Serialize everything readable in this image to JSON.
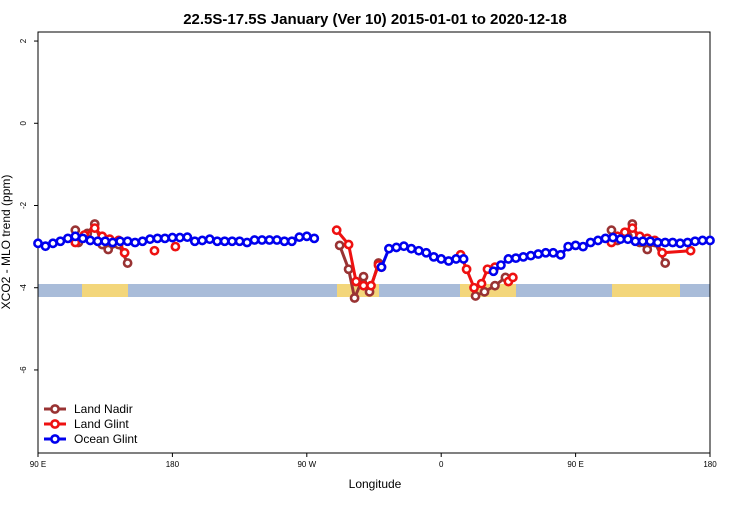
{
  "chart_data": {
    "type": "line",
    "title": "22.5S-17.5S January (Ver 10)   2015-01-01 to 2020-12-18",
    "x_label": "Longitude",
    "y_label": "XCO2 - MLO trend (ppm)",
    "xlim": [
      90,
      540
    ],
    "ylim": [
      -8.02,
      2.22
    ],
    "xticks": [
      {
        "value": 90,
        "label": "90 E"
      },
      {
        "value": 180,
        "label": "180"
      },
      {
        "value": 270,
        "label": "90 W"
      },
      {
        "value": 360,
        "label": "0"
      },
      {
        "value": 450,
        "label": "90 E"
      },
      {
        "value": 540,
        "label": "180"
      }
    ],
    "yticks": [
      2,
      0,
      -2,
      -4,
      -6
    ],
    "legend": "bottomleft",
    "series": [
      {
        "name": "Land Nadir",
        "color": "#993333",
        "x": [
          115,
          117,
          123,
          128,
          133,
          137,
          144,
          150,
          null,
          292,
          298,
          302,
          308,
          312,
          318,
          null,
          383,
          389,
          396,
          403,
          null,
          474,
          478,
          485,
          488,
          493,
          498,
          503,
          510
        ],
        "values": [
          -2.6,
          -2.9,
          -2.68,
          -2.45,
          -2.95,
          -3.07,
          -2.95,
          -3.4,
          null,
          -2.97,
          -3.55,
          -4.25,
          -3.73,
          -4.1,
          -3.4,
          null,
          -4.2,
          -4.1,
          -3.95,
          -3.75,
          null,
          -2.6,
          -2.85,
          -2.75,
          -2.45,
          -2.9,
          -3.07,
          -2.9,
          -3.4
        ]
      },
      {
        "name": "Land Glint",
        "color": "#ee1111",
        "x": [
          115,
          121,
          128,
          133,
          138,
          144,
          148,
          null,
          168,
          null,
          182,
          null,
          290,
          298,
          303,
          308,
          313,
          318,
          320,
          null,
          373,
          377,
          382,
          387,
          391,
          396,
          null,
          405,
          408,
          null,
          474,
          478,
          483,
          488,
          493,
          498,
          503,
          508,
          527
        ],
        "values": [
          -2.9,
          -2.72,
          -2.55,
          -2.75,
          -2.82,
          -2.85,
          -3.15,
          null,
          -3.1,
          null,
          -3.0,
          null,
          -2.6,
          -2.95,
          -3.85,
          -3.95,
          -3.95,
          -3.45,
          -3.5,
          null,
          -3.2,
          -3.55,
          -4.0,
          -3.9,
          -3.55,
          -3.5,
          null,
          -3.85,
          -3.75,
          null,
          -2.9,
          -2.75,
          -2.65,
          -2.55,
          -2.75,
          -2.8,
          -2.85,
          -3.15,
          -3.1
        ]
      },
      {
        "name": "Ocean Glint",
        "color": "#0000ee",
        "x": [
          90,
          95,
          100,
          105,
          110,
          115,
          120,
          125,
          130,
          135,
          140,
          145,
          150,
          155,
          160,
          165,
          170,
          175,
          180,
          185,
          190,
          195,
          200,
          205,
          210,
          215,
          220,
          225,
          230,
          235,
          240,
          245,
          250,
          255,
          260,
          265,
          270,
          275,
          null,
          320,
          325,
          330,
          335,
          340,
          345,
          350,
          355,
          360,
          365,
          370,
          375,
          null,
          395,
          400,
          405,
          410,
          415,
          420,
          425,
          430,
          435,
          440,
          445,
          450,
          455,
          460,
          465,
          470,
          475,
          480,
          485,
          490,
          495,
          500,
          505,
          510,
          515,
          520,
          525,
          530,
          535,
          540
        ],
        "values": [
          -2.92,
          -2.99,
          -2.92,
          -2.87,
          -2.8,
          -2.75,
          -2.8,
          -2.85,
          -2.87,
          -2.87,
          -2.9,
          -2.87,
          -2.87,
          -2.9,
          -2.87,
          -2.82,
          -2.8,
          -2.8,
          -2.78,
          -2.78,
          -2.77,
          -2.87,
          -2.85,
          -2.82,
          -2.87,
          -2.87,
          -2.87,
          -2.87,
          -2.9,
          -2.84,
          -2.84,
          -2.84,
          -2.84,
          -2.87,
          -2.87,
          -2.77,
          -2.75,
          -2.8,
          null,
          -3.5,
          -3.05,
          -3.02,
          -2.99,
          -3.05,
          -3.1,
          -3.15,
          -3.25,
          -3.3,
          -3.35,
          -3.3,
          -3.3,
          null,
          -3.6,
          -3.45,
          -3.3,
          -3.28,
          -3.25,
          -3.22,
          -3.18,
          -3.15,
          -3.15,
          -3.2,
          -3.0,
          -2.97,
          -3.0,
          -2.9,
          -2.85,
          -2.8,
          -2.78,
          -2.82,
          -2.82,
          -2.87,
          -2.87,
          -2.87,
          -2.9,
          -2.9,
          -2.9,
          -2.92,
          -2.9,
          -2.87,
          -2.85,
          -2.85
        ]
      }
    ]
  }
}
